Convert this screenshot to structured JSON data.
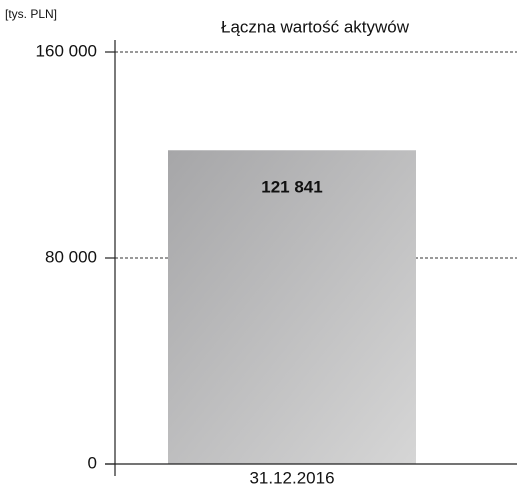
{
  "chart_data": {
    "type": "bar",
    "title": "Łączna wartość aktywów",
    "y_axis_label": "[tys. PLN]",
    "categories": [
      "31.12.2016"
    ],
    "values": [
      121841
    ],
    "value_labels": [
      "121 841"
    ],
    "ylim": [
      0,
      160000
    ],
    "yticks": [
      0,
      {
        "value": 80000,
        "label": "80 000"
      },
      {
        "value": 160000,
        "label": "160 000"
      }
    ],
    "grid": true
  }
}
